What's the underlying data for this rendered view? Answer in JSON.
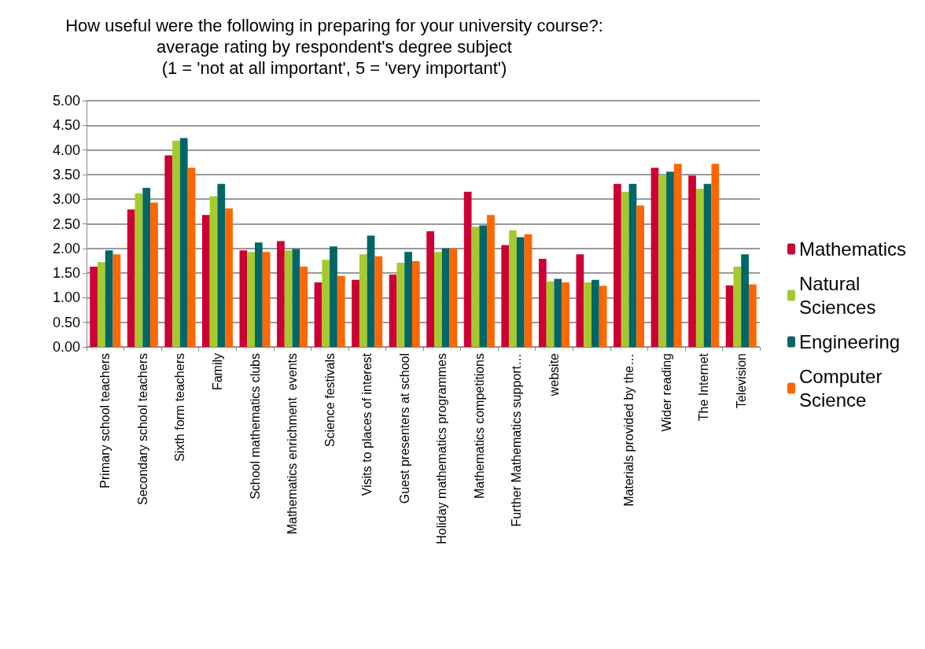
{
  "chart_data": {
    "type": "bar",
    "title": "How useful were the following in preparing for your university course?:\naverage rating by respondent's degree subject\n(1 = 'not at all important', 5 = 'very important')",
    "categories": [
      "Primary school teachers",
      "Secondary school teachers",
      "Sixth form teachers",
      "Family",
      "School mathematics clubs",
      "Mathematics enrichment  events",
      "Science festivals",
      "Visits to places of interest",
      "Guest presenters at school",
      "Holiday mathematics programmes",
      "Mathematics competitions",
      "Further Mathematics support…",
      "website",
      null,
      "Materials provided by the…",
      "Wider reading",
      "The Internet",
      "Television"
    ],
    "series": [
      {
        "name": "Mathematics",
        "color": "#cc0033",
        "values": [
          1.63,
          2.79,
          3.89,
          2.68,
          1.96,
          2.15,
          1.31,
          1.36,
          1.47,
          2.35,
          3.15,
          2.07,
          1.79,
          1.88,
          3.31,
          3.64,
          3.48,
          1.25
        ]
      },
      {
        "name": "Natural Sciences",
        "color": "#a6c92e",
        "values": [
          1.72,
          3.12,
          4.19,
          3.06,
          1.93,
          1.96,
          1.77,
          1.88,
          1.71,
          1.93,
          2.44,
          2.37,
          1.33,
          1.31,
          3.15,
          3.48,
          3.21,
          1.63
        ]
      },
      {
        "name": "Engineering",
        "color": "#006666",
        "values": [
          1.96,
          3.23,
          4.24,
          3.31,
          2.12,
          1.99,
          2.04,
          2.26,
          1.93,
          2.0,
          2.47,
          2.23,
          1.38,
          1.36,
          3.31,
          3.56,
          3.31,
          1.88
        ]
      },
      {
        "name": "Computer Science",
        "color": "#ff6600",
        "values": [
          1.88,
          2.93,
          3.64,
          2.81,
          1.93,
          1.63,
          1.44,
          1.84,
          1.74,
          2.0,
          2.68,
          2.29,
          1.31,
          1.24,
          2.87,
          3.72,
          3.72,
          1.27
        ]
      }
    ],
    "ylim": [
      0,
      5
    ],
    "yticks": [
      {
        "value": 0,
        "label": "0.00"
      },
      {
        "value": 0.5,
        "label": "0.50"
      },
      {
        "value": 1,
        "label": "1.00"
      },
      {
        "value": 1.5,
        "label": "1.50"
      },
      {
        "value": 2,
        "label": "2.00"
      },
      {
        "value": 2.5,
        "label": "2.50"
      },
      {
        "value": 3,
        "label": "3.00"
      },
      {
        "value": 3.5,
        "label": "3.50"
      },
      {
        "value": 4,
        "label": "4.00"
      },
      {
        "value": 4.5,
        "label": "4.50"
      },
      {
        "value": 5,
        "label": "5.00"
      }
    ],
    "grid": "y",
    "legend": "right"
  }
}
